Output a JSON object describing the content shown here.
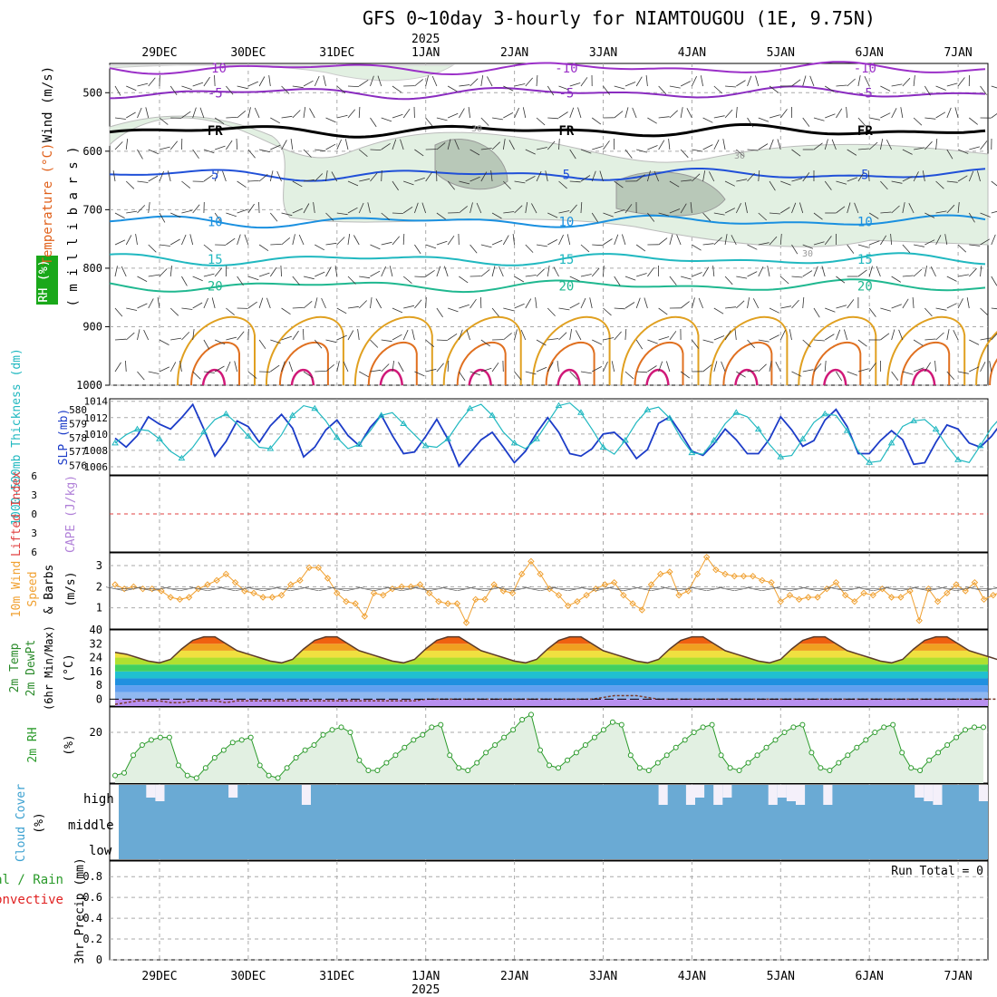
{
  "title": "GFS 0~10day 3-hourly for NIAMTOUGOU (1E, 9.75N)",
  "year": "2025",
  "dates": [
    "29DEC",
    "30DEC",
    "31DEC",
    "1JAN",
    "2JAN",
    "3JAN",
    "4JAN",
    "5JAN",
    "6JAN",
    "7JAN"
  ],
  "run_total": "Run Total = 0",
  "colors": {
    "temp_neg10": "#9b30c8",
    "temp_neg5": "#8a2cc0",
    "freezing": "#000000",
    "temp_5": "#2050d8",
    "temp_10": "#1a90e0",
    "temp_15": "#20b8c0",
    "temp_20": "#20b890",
    "temp_25": "#e0a020",
    "temp_30": "#e07020",
    "temp_35": "#d01878",
    "rh_fill": "#e2f0e2",
    "rh_dark": "#b8c8b8",
    "slp": "#1c3cc8",
    "thickness": "#20b8c0",
    "wind_speed": "#f0a030",
    "rh2m": "#2a9a2a",
    "cloud": "#6aaad4",
    "cloud_gap": "#f4f0fa"
  },
  "chart_data": [
    {
      "type": "contour",
      "panel": "upper-air",
      "ylabel_parts": [
        "RH (%)",
        "Temperature (°C)",
        "Wind (m/s)"
      ],
      "ylabel2": "( m i l l i b a r s )",
      "y_ticks": [
        500,
        600,
        700,
        800,
        900,
        1000
      ],
      "ylim": [
        1000,
        450
      ],
      "isotherm_labels": [
        {
          "label": "-10",
          "series": "temp_neg10"
        },
        {
          "label": "-5",
          "series": "temp_neg5"
        },
        {
          "label": "FR",
          "series": "freezing"
        },
        {
          "label": "5",
          "series": "temp_5"
        },
        {
          "label": "10",
          "series": "temp_10"
        },
        {
          "label": "15",
          "series": "temp_15"
        },
        {
          "label": "20",
          "series": "temp_20"
        }
      ],
      "isotherm_levels_mb": {
        "temp_neg10": 458,
        "temp_neg5": 500,
        "freezing": 565,
        "temp_5": 640,
        "temp_10": 720,
        "temp_15": 785,
        "temp_20": 830
      },
      "rh_labels": [
        "30",
        "30",
        "30"
      ]
    },
    {
      "type": "line",
      "panel": "slp-thickness",
      "ylabel_parts": [
        "1000-500mb Thickness (dm)",
        "SLP (mb)"
      ],
      "left_ticks": [
        576,
        577,
        578,
        579,
        580
      ],
      "right_ticks": [
        1006,
        1008,
        1010,
        1012,
        1014
      ],
      "series": [
        {
          "name": "SLP (mb)",
          "axis": "right",
          "values": [
            1009.5,
            1008.4,
            1009.8,
            1012.1,
            1011.2,
            1010.6,
            1012.0,
            1013.6,
            1010.6,
            1007.3,
            1009.1,
            1011.6,
            1010.9,
            1009.0,
            1011.0,
            1012.4,
            1010.7,
            1007.2,
            1008.4,
            1010.5,
            1011.7,
            1009.8,
            1008.6,
            1010.8,
            1012.3,
            1009.8,
            1007.6,
            1007.8,
            1009.7,
            1011.8,
            1009.4,
            1006.1,
            1007.7,
            1009.3,
            1010.2,
            1008.4,
            1006.5,
            1007.9,
            1010.1,
            1012.0,
            1010.2,
            1007.6,
            1007.3,
            1008.2,
            1010.0,
            1010.2,
            1009.0,
            1007.0,
            1008.1,
            1011.3,
            1012.1,
            1010.1,
            1007.9,
            1007.4,
            1008.8,
            1010.6,
            1009.3,
            1007.6,
            1007.6,
            1009.4,
            1012.1,
            1010.5,
            1008.5,
            1009.2,
            1011.7,
            1013.0,
            1010.9,
            1007.6,
            1007.6,
            1009.2,
            1010.4,
            1009.3,
            1006.3,
            1006.5,
            1009.0,
            1011.1,
            1010.6,
            1008.9,
            1008.4,
            1009.7,
            1011.5,
            1009.3,
            1006.1,
            1007.1,
            1008.8,
            1010.0
          ]
        },
        {
          "name": "Thickness (dm)",
          "axis": "left",
          "values": [
            577.6,
            578.2,
            578.6,
            578.5,
            577.9,
            577.0,
            576.5,
            577.3,
            578.4,
            579.3,
            579.7,
            579.0,
            578.1,
            577.3,
            577.2,
            578.2,
            579.6,
            580.3,
            580.1,
            579.2,
            578.0,
            577.2,
            577.5,
            578.5,
            579.6,
            579.8,
            579.0,
            578.2,
            577.4,
            577.3,
            577.9,
            579.1,
            580.1,
            580.4,
            579.6,
            578.4,
            577.6,
            577.2,
            577.9,
            579.1,
            580.3,
            580.5,
            579.8,
            578.6,
            577.3,
            576.8,
            577.8,
            579.1,
            580.0,
            580.2,
            579.4,
            578.0,
            576.9,
            576.8,
            577.8,
            579.0,
            579.8,
            579.5,
            578.6,
            577.5,
            576.6,
            576.7,
            577.9,
            579.1,
            579.7,
            579.6,
            578.5,
            577.0,
            576.2,
            576.3,
            577.6,
            578.8,
            579.2,
            579.3,
            578.6,
            577.4,
            576.4,
            576.2,
            577.4,
            578.7,
            579.6,
            579.5,
            578.8,
            578.1,
            577.6,
            577.6
          ]
        }
      ]
    },
    {
      "type": "line",
      "panel": "cape-li",
      "ylabel_parts": [
        "Lifted Index",
        "CAPE (J/kg)"
      ],
      "y_ticks": [
        "6",
        "3",
        "0",
        "3",
        "6"
      ],
      "series": []
    },
    {
      "type": "line",
      "panel": "wind10m",
      "ylabel_parts": [
        "10m Wind",
        "Speed",
        "& Barbs",
        "(m/s)"
      ],
      "y_ticks": [
        1,
        2,
        3
      ],
      "ylim": [
        0,
        3.6
      ],
      "series": [
        {
          "name": "10m Wind Speed",
          "values": [
            2.1,
            1.9,
            2.0,
            1.9,
            1.9,
            1.8,
            1.5,
            1.4,
            1.5,
            1.9,
            2.1,
            2.3,
            2.6,
            2.2,
            1.8,
            1.7,
            1.5,
            1.5,
            1.6,
            2.1,
            2.3,
            2.9,
            2.9,
            2.4,
            1.7,
            1.3,
            1.2,
            0.6,
            1.7,
            1.6,
            1.9,
            2.0,
            2.0,
            2.1,
            1.7,
            1.3,
            1.2,
            1.2,
            0.3,
            1.4,
            1.4,
            2.1,
            1.8,
            1.7,
            2.6,
            3.2,
            2.6,
            1.9,
            1.6,
            1.1,
            1.3,
            1.6,
            1.9,
            2.1,
            2.2,
            1.6,
            1.2,
            0.9,
            2.1,
            2.6,
            2.7,
            1.6,
            1.8,
            2.6,
            3.4,
            2.8,
            2.6,
            2.5,
            2.5,
            2.5,
            2.3,
            2.2,
            1.3,
            1.6,
            1.4,
            1.5,
            1.5,
            1.9,
            2.2,
            1.6,
            1.3,
            1.7,
            1.6,
            1.9,
            1.5,
            1.5,
            1.8,
            0.4,
            1.9,
            1.3,
            1.7,
            2.1,
            1.8,
            2.2,
            1.4,
            1.6,
            1.8
          ]
        }
      ]
    },
    {
      "type": "area",
      "panel": "temp2m",
      "ylabel_parts": [
        "2m Temp",
        "2m DewPt",
        "(6hr Min/Max)",
        "(°C)"
      ],
      "y_ticks": [
        0,
        8,
        16,
        24,
        32,
        40
      ],
      "ylim": [
        -4,
        40
      ],
      "series": [
        {
          "name": "2m Temp",
          "values": [
            27,
            26,
            24,
            22,
            21,
            23,
            29,
            34,
            36,
            36,
            32,
            28,
            26,
            24,
            22,
            21,
            23,
            29,
            34,
            36,
            36,
            32,
            28,
            26,
            24,
            22,
            21,
            23,
            29,
            34,
            36,
            36,
            32,
            28,
            26,
            24,
            22,
            21,
            23,
            29,
            34,
            36,
            36,
            32,
            28,
            26,
            24,
            22,
            21,
            23,
            29,
            34,
            36,
            36,
            32,
            28,
            26,
            24,
            22,
            21,
            23,
            29,
            34,
            36,
            36,
            32,
            28,
            26,
            24,
            22,
            21,
            23,
            29,
            34,
            36,
            36,
            32,
            28,
            26,
            24,
            22,
            21,
            23,
            29,
            34
          ]
        },
        {
          "name": "2m DewPt",
          "values": [
            -3,
            -2,
            -1,
            -1,
            -1,
            -2,
            -2,
            -1,
            -1,
            -1,
            -2,
            -1,
            -1,
            -1,
            -1,
            -1,
            -1,
            -1,
            -1,
            -1,
            -1,
            -1,
            -1,
            -1,
            -1,
            -1,
            -1,
            -1,
            0,
            0,
            0,
            0,
            0,
            0,
            0,
            0,
            0,
            0,
            0,
            0,
            0,
            0,
            0,
            0,
            1,
            2,
            2,
            2,
            1,
            0,
            0,
            0,
            0,
            0,
            0,
            0,
            0,
            0,
            0,
            0,
            0,
            0,
            0,
            0,
            0,
            0,
            0,
            0,
            0,
            0,
            0,
            0,
            0,
            0,
            0,
            0,
            0,
            0,
            0,
            0,
            0,
            0,
            0,
            0,
            0,
            0
          ]
        }
      ]
    },
    {
      "type": "area",
      "panel": "rh2m",
      "ylabel_parts": [
        "2m RH",
        "(%)"
      ],
      "y_ticks": [
        20
      ],
      "ylim": [
        0,
        30
      ],
      "series": [
        {
          "name": "2m RH",
          "values": [
            3,
            4,
            11,
            15,
            17,
            18,
            18,
            7,
            3,
            2,
            6,
            10,
            13,
            16,
            17,
            18,
            7,
            3,
            2,
            6,
            10,
            13,
            15,
            19,
            21,
            22,
            20,
            9,
            5,
            5,
            8,
            11,
            14,
            17,
            19,
            22,
            23,
            11,
            6,
            5,
            8,
            12,
            15,
            18,
            21,
            25,
            27,
            13,
            7,
            6,
            9,
            12,
            15,
            18,
            21,
            24,
            23,
            11,
            6,
            5,
            8,
            11,
            14,
            17,
            20,
            22,
            23,
            11,
            6,
            5,
            8,
            11,
            14,
            17,
            20,
            22,
            23,
            12,
            6,
            5,
            8,
            11,
            14,
            17,
            20,
            22,
            23,
            12,
            6,
            5,
            9,
            12,
            15,
            18,
            21,
            22,
            22
          ]
        }
      ]
    },
    {
      "type": "bar",
      "panel": "cloud-cover",
      "ylabel_parts": [
        "Cloud Cover",
        "(%)"
      ],
      "level_labels": [
        "high",
        "middle",
        "low"
      ],
      "high_gap": [
        0,
        0,
        0,
        1,
        1,
        0,
        0,
        0,
        0,
        0,
        0,
        0,
        1,
        0,
        0,
        0,
        0,
        0,
        0,
        0,
        1,
        0,
        0,
        0,
        0,
        0,
        0,
        0,
        0,
        0,
        0,
        0,
        0,
        0,
        0,
        0,
        0,
        0,
        0,
        0,
        0,
        0,
        0,
        0,
        0,
        0,
        0,
        0,
        0,
        0,
        0,
        0,
        0,
        0,
        0,
        0,
        0,
        0,
        0,
        1,
        0,
        0,
        1,
        1,
        0,
        1,
        1,
        0,
        0,
        0,
        0,
        1,
        1,
        1,
        1,
        0,
        0,
        1,
        0,
        0,
        0,
        0,
        0,
        0,
        0,
        0,
        0,
        1,
        1,
        1,
        0,
        0,
        0,
        0,
        1
      ]
    },
    {
      "type": "bar",
      "panel": "precip",
      "ylabel_parts": [
        "Total / Rain",
        "Convective",
        "3hr Precip (mm)"
      ],
      "y_ticks": [
        "0",
        "0.2",
        "0.4",
        "0.6",
        "0.8"
      ],
      "ylim": [
        0,
        0.95
      ],
      "series": [
        {
          "name": "Total / Rain",
          "values": []
        },
        {
          "name": "Convective",
          "values": []
        }
      ]
    }
  ]
}
